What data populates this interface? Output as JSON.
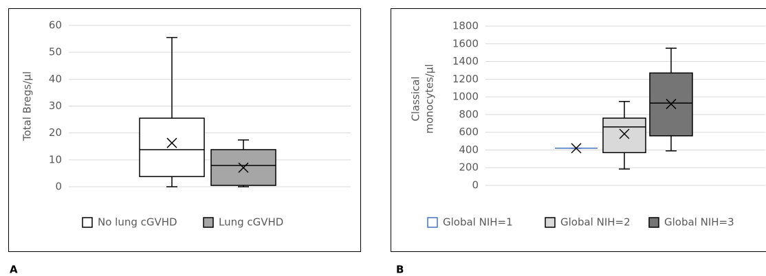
{
  "chart_data": [
    {
      "type": "box",
      "panel_label": "A",
      "ylabel": "Total Bregs/µl",
      "ylim": [
        0,
        60
      ],
      "yticks": [
        0,
        10,
        20,
        30,
        40,
        50,
        60
      ],
      "grid": true,
      "boxes": [
        {
          "name": "No lung cGVHD",
          "color": "#ffffff",
          "stroke": "#000000",
          "min": 0,
          "q1": 3.8,
          "median": 13.8,
          "q3": 25.5,
          "max": 55.5,
          "mean": 16.3
        },
        {
          "name": "Lung cGVHD",
          "color": "#a6a6a6",
          "stroke": "#000000",
          "min": 0,
          "q1": 0.5,
          "median": 7.9,
          "q3": 13.8,
          "max": 17.4,
          "mean": 7.1
        }
      ]
    },
    {
      "type": "box",
      "panel_label": "B",
      "ylabel_lines": [
        "Classical",
        "monocytes/µl"
      ],
      "ylim": [
        0,
        1800
      ],
      "yticks": [
        0,
        200,
        400,
        600,
        800,
        1000,
        1200,
        1400,
        1600,
        1800
      ],
      "grid": true,
      "boxes": [
        {
          "name": "Global NIH=1",
          "color": "#ffffff",
          "stroke": "#4472c4",
          "min": 420,
          "q1": 420,
          "median": 420,
          "q3": 420,
          "max": 420,
          "mean": 420
        },
        {
          "name": "Global NIH=2",
          "color": "#d9d9d9",
          "stroke": "#000000",
          "min": 185,
          "q1": 370,
          "median": 660,
          "q3": 760,
          "max": 948,
          "mean": 582
        },
        {
          "name": "Global NIH=3",
          "color": "#757575",
          "stroke": "#000000",
          "min": 390,
          "q1": 560,
          "median": 930,
          "q3": 1270,
          "max": 1550,
          "mean": 920
        }
      ]
    }
  ]
}
